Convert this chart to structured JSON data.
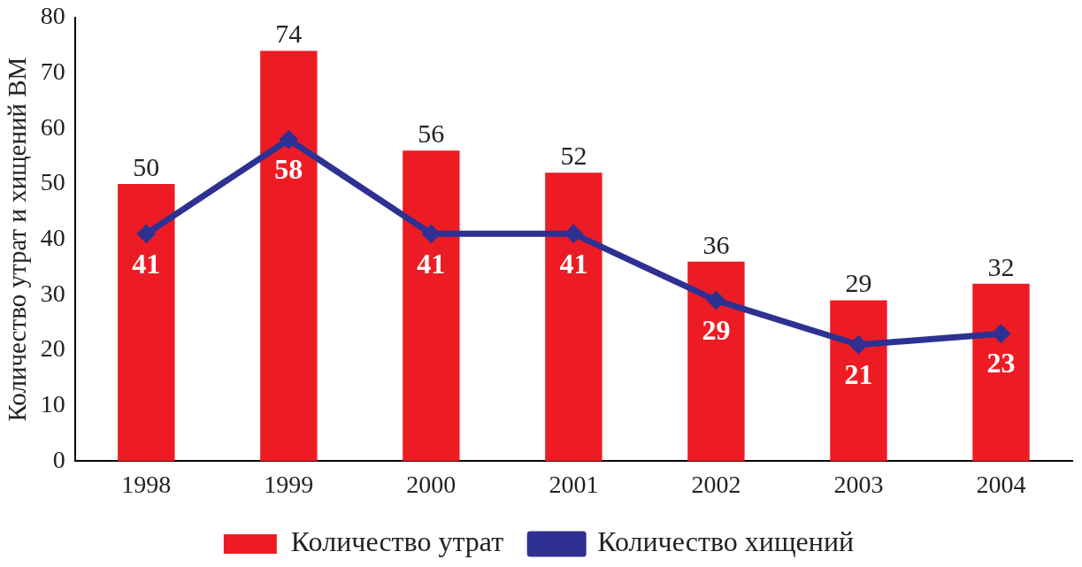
{
  "chart_data": {
    "type": "bar",
    "ylabel": "Количество утрат и хищений ВМ",
    "categories": [
      "1998",
      "1999",
      "2000",
      "2001",
      "2002",
      "2003",
      "2004"
    ],
    "series": [
      {
        "name": "Количество утрат",
        "color": "#ed1c24",
        "values": [
          50,
          74,
          56,
          52,
          36,
          29,
          32
        ]
      },
      {
        "name": "Количество хищений",
        "type": "line",
        "color": "#2e3192",
        "values": [
          41,
          58,
          41,
          41,
          29,
          21,
          23
        ]
      }
    ],
    "ylim": [
      0,
      80
    ],
    "yticks": [
      0,
      10,
      20,
      30,
      40,
      50,
      60,
      70,
      80
    ],
    "grid": false,
    "legend": "bottom",
    "marker": "diamond",
    "line_style": "solid",
    "data_labels": true
  }
}
